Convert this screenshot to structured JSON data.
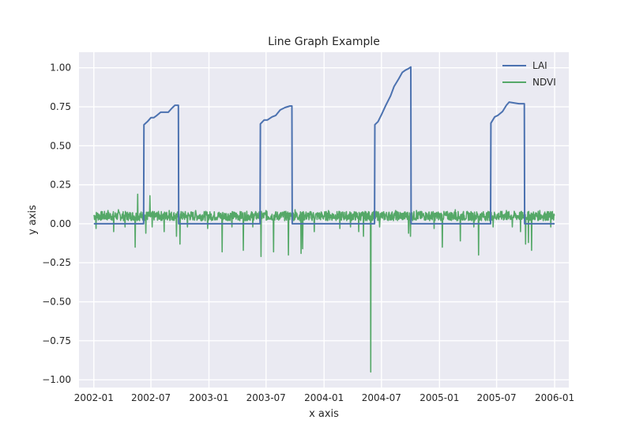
{
  "chart_data": {
    "type": "line",
    "title": "Line Graph Example",
    "xlabel": "x axis",
    "ylabel": "y axis",
    "xlim": [
      "2001-11-15",
      "2006-02-15"
    ],
    "ylim": [
      -1.05,
      1.1
    ],
    "grid": true,
    "legend_position": "top-right",
    "background_color": "#EAEAF2",
    "x_ticks": [
      "2002-01",
      "2002-07",
      "2003-01",
      "2003-07",
      "2004-01",
      "2004-07",
      "2005-01",
      "2005-07",
      "2006-01"
    ],
    "y_ticks": [
      1.0,
      0.75,
      0.5,
      0.25,
      0.0,
      -0.25,
      -0.5,
      -0.75,
      -1.0
    ],
    "y_tick_labels": [
      "1.00",
      "0.75",
      "0.50",
      "0.25",
      "0.00",
      "−0.25",
      "−0.50",
      "−0.75",
      "−1.00"
    ],
    "series": [
      {
        "name": "LAI",
        "color": "#4C72B0",
        "points": [
          [
            "2002-01-01",
            0.0
          ],
          [
            "2002-06-08",
            0.0
          ],
          [
            "2002-06-09",
            0.635
          ],
          [
            "2002-06-20",
            0.655
          ],
          [
            "2002-07-01",
            0.68
          ],
          [
            "2002-07-10",
            0.68
          ],
          [
            "2002-07-20",
            0.695
          ],
          [
            "2002-08-01",
            0.715
          ],
          [
            "2002-08-10",
            0.715
          ],
          [
            "2002-08-25",
            0.715
          ],
          [
            "2002-09-05",
            0.74
          ],
          [
            "2002-09-15",
            0.76
          ],
          [
            "2002-09-26",
            0.76
          ],
          [
            "2002-09-27",
            0.0
          ],
          [
            "2003-06-12",
            0.0
          ],
          [
            "2003-06-13",
            0.64
          ],
          [
            "2003-06-25",
            0.665
          ],
          [
            "2003-07-05",
            0.665
          ],
          [
            "2003-07-20",
            0.685
          ],
          [
            "2003-08-01",
            0.695
          ],
          [
            "2003-08-15",
            0.73
          ],
          [
            "2003-08-30",
            0.745
          ],
          [
            "2003-09-15",
            0.755
          ],
          [
            "2003-09-21",
            0.755
          ],
          [
            "2003-09-22",
            0.0
          ],
          [
            "2004-06-09",
            0.0
          ],
          [
            "2004-06-10",
            0.635
          ],
          [
            "2004-06-20",
            0.655
          ],
          [
            "2004-07-01",
            0.7
          ],
          [
            "2004-07-15",
            0.76
          ],
          [
            "2004-07-30",
            0.82
          ],
          [
            "2004-08-10",
            0.88
          ],
          [
            "2004-08-25",
            0.93
          ],
          [
            "2004-09-05",
            0.97
          ],
          [
            "2004-09-15",
            0.985
          ],
          [
            "2004-09-25",
            0.995
          ],
          [
            "2004-10-02",
            1.005
          ],
          [
            "2004-10-03",
            0.0
          ],
          [
            "2005-06-12",
            0.0
          ],
          [
            "2005-06-13",
            0.645
          ],
          [
            "2005-06-25",
            0.685
          ],
          [
            "2005-07-05",
            0.695
          ],
          [
            "2005-07-20",
            0.72
          ],
          [
            "2005-08-01",
            0.76
          ],
          [
            "2005-08-10",
            0.78
          ],
          [
            "2005-08-25",
            0.775
          ],
          [
            "2005-09-10",
            0.77
          ],
          [
            "2005-09-27",
            0.77
          ],
          [
            "2005-09-28",
            0.0
          ],
          [
            "2006-01-01",
            0.0
          ]
        ]
      },
      {
        "name": "NDVI",
        "color": "#55A868",
        "baseline": 0.05,
        "start": "2002-01-01",
        "end": "2006-01-01",
        "spikes": [
          [
            "2002-01-08",
            -0.03
          ],
          [
            "2002-02-15",
            0.085
          ],
          [
            "2002-03-05",
            -0.05
          ],
          [
            "2002-03-20",
            0.09
          ],
          [
            "2002-04-10",
            -0.02
          ],
          [
            "2002-05-12",
            -0.15
          ],
          [
            "2002-05-20",
            0.19
          ],
          [
            "2002-06-15",
            -0.06
          ],
          [
            "2002-06-28",
            0.18
          ],
          [
            "2002-07-05",
            -0.02
          ],
          [
            "2002-08-12",
            -0.05
          ],
          [
            "2002-08-28",
            0.085
          ],
          [
            "2002-09-20",
            -0.08
          ],
          [
            "2002-10-01",
            -0.13
          ],
          [
            "2002-10-25",
            -0.02
          ],
          [
            "2002-11-20",
            0.085
          ],
          [
            "2002-12-28",
            -0.03
          ],
          [
            "2003-02-12",
            -0.18
          ],
          [
            "2003-03-15",
            -0.02
          ],
          [
            "2003-04-20",
            -0.17
          ],
          [
            "2003-05-20",
            -0.02
          ],
          [
            "2003-06-15",
            -0.21
          ],
          [
            "2003-07-01",
            0.085
          ],
          [
            "2003-07-25",
            -0.18
          ],
          [
            "2003-09-10",
            -0.2
          ],
          [
            "2003-10-01",
            0.09
          ],
          [
            "2003-10-20",
            -0.19
          ],
          [
            "2003-10-25",
            -0.16
          ],
          [
            "2003-12-01",
            -0.05
          ],
          [
            "2004-01-15",
            0.085
          ],
          [
            "2004-02-20",
            -0.03
          ],
          [
            "2004-03-25",
            -0.02
          ],
          [
            "2004-04-20",
            -0.05
          ],
          [
            "2004-05-05",
            -0.08
          ],
          [
            "2004-05-28",
            -0.95
          ],
          [
            "2004-06-25",
            -0.02
          ],
          [
            "2004-08-15",
            0.085
          ],
          [
            "2004-09-25",
            -0.06
          ],
          [
            "2004-10-01",
            -0.08
          ],
          [
            "2004-10-20",
            0.085
          ],
          [
            "2004-12-15",
            -0.03
          ],
          [
            "2005-01-10",
            -0.15
          ],
          [
            "2005-02-20",
            0.09
          ],
          [
            "2005-03-08",
            -0.11
          ],
          [
            "2005-04-20",
            -0.02
          ],
          [
            "2005-05-05",
            -0.2
          ],
          [
            "2005-06-20",
            -0.02
          ],
          [
            "2005-08-01",
            0.085
          ],
          [
            "2005-08-20",
            -0.02
          ],
          [
            "2005-09-15",
            -0.05
          ],
          [
            "2005-10-01",
            -0.13
          ],
          [
            "2005-10-10",
            -0.12
          ],
          [
            "2005-10-20",
            -0.17
          ],
          [
            "2005-11-15",
            0.085
          ],
          [
            "2005-12-20",
            -0.02
          ]
        ]
      }
    ]
  }
}
